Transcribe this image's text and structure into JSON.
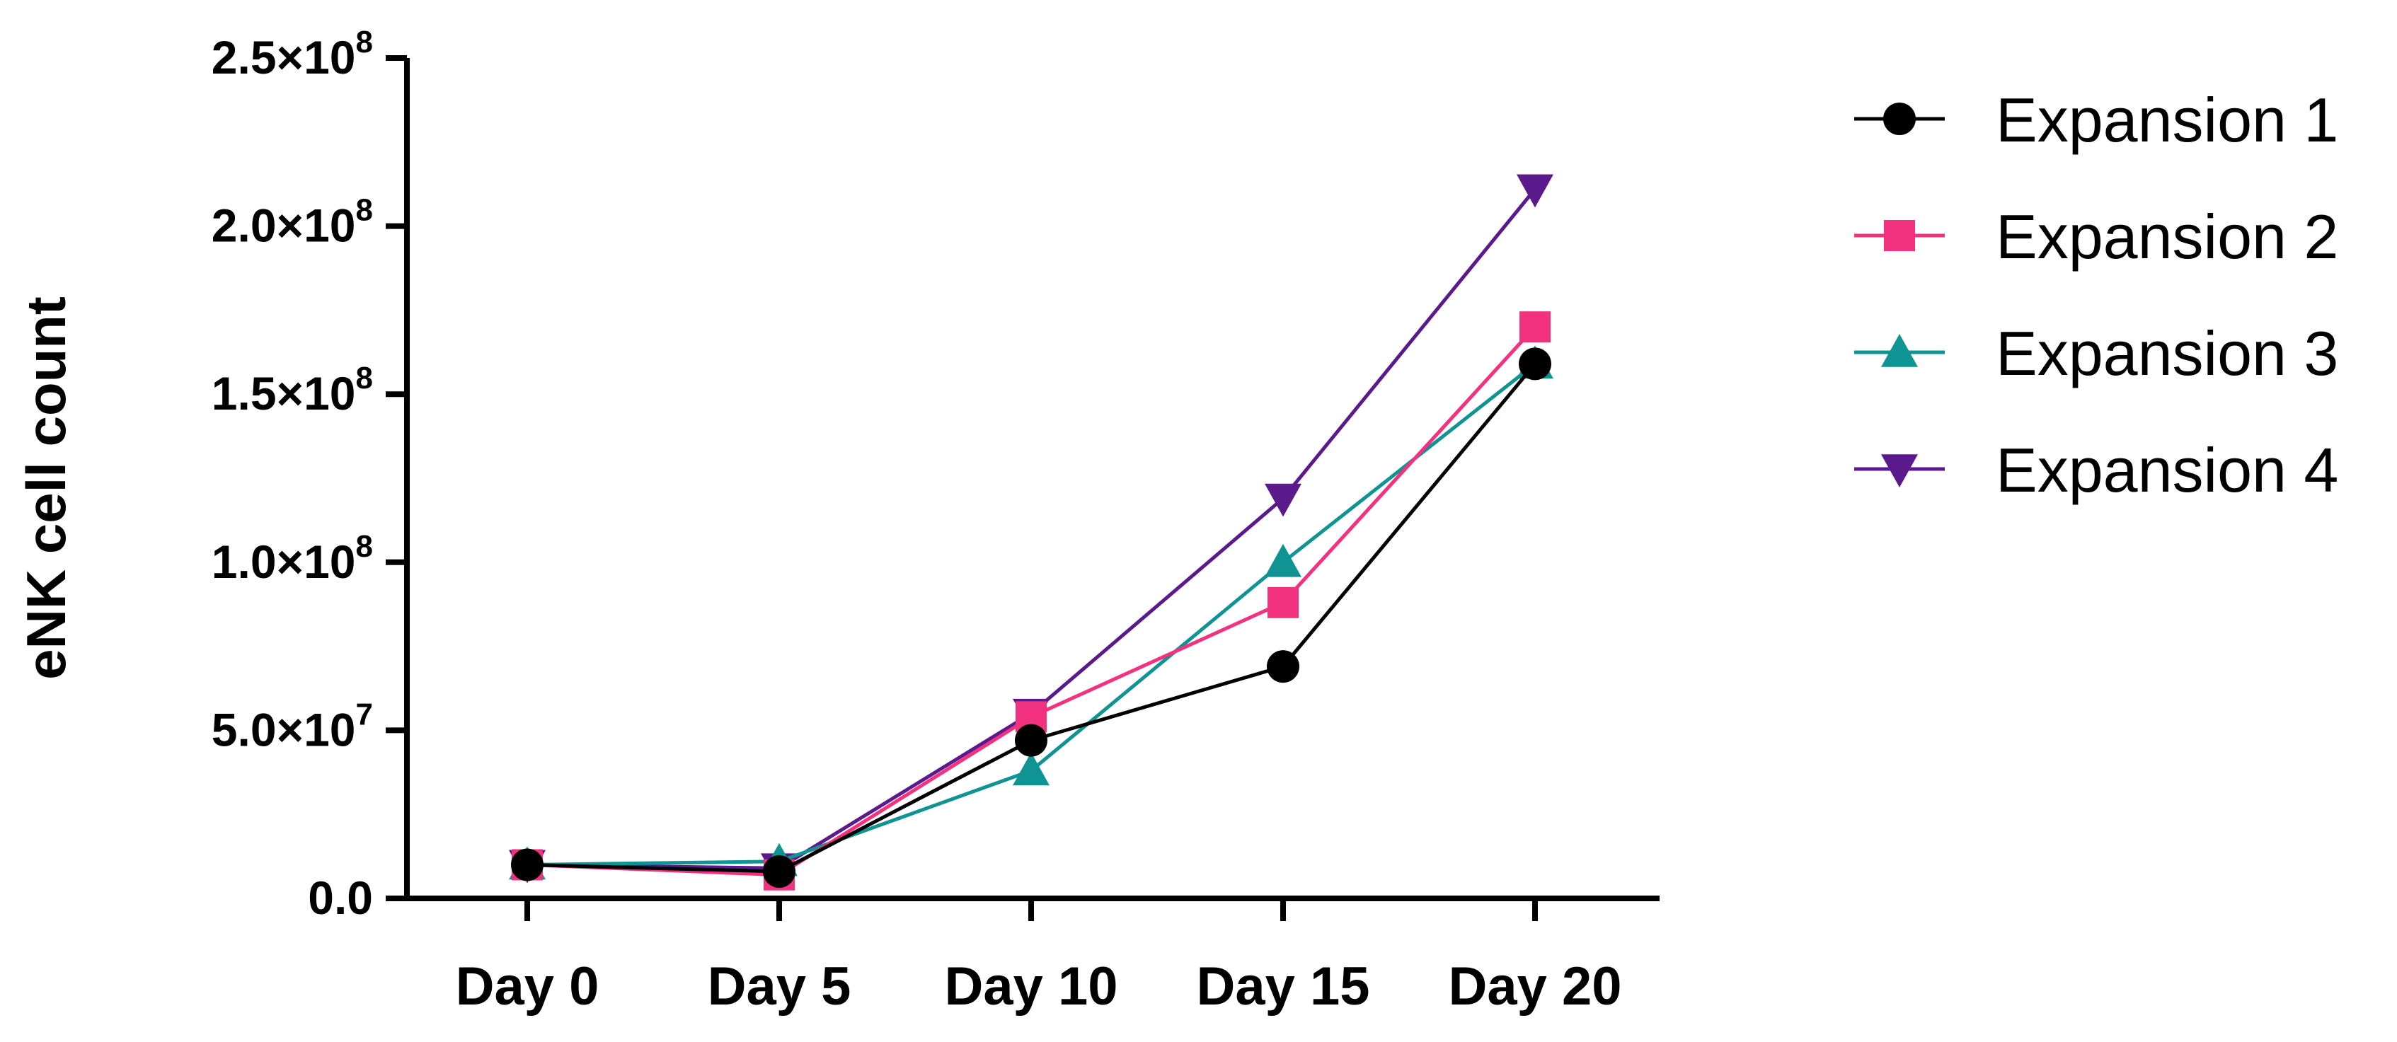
{
  "chart_data": {
    "type": "line",
    "title": "",
    "xlabel": "",
    "ylabel": "eNK cell count",
    "categories": [
      "Day 0",
      "Day 5",
      "Day 10",
      "Day 15",
      "Day 20"
    ],
    "ylim": [
      0,
      250000000
    ],
    "y_ticks": [
      {
        "value": 0,
        "mantissa": "0.0",
        "exponent": ""
      },
      {
        "value": 50000000,
        "mantissa": "5.0×10",
        "exponent": "7"
      },
      {
        "value": 100000000,
        "mantissa": "1.0×10",
        "exponent": "8"
      },
      {
        "value": 150000000,
        "mantissa": "1.5×10",
        "exponent": "8"
      },
      {
        "value": 200000000,
        "mantissa": "2.0×10",
        "exponent": "8"
      },
      {
        "value": 250000000,
        "mantissa": "2.5×10",
        "exponent": "8"
      }
    ],
    "grid": false,
    "legend_position": "top-right",
    "series": [
      {
        "name": "Expansion 1",
        "color": "#000000",
        "marker": "circle",
        "values": [
          10000000,
          8000000,
          47000000,
          69000000,
          159000000
        ]
      },
      {
        "name": "Expansion 2",
        "color": "#f2317f",
        "marker": "square",
        "values": [
          10000000,
          7000000,
          54000000,
          88000000,
          170000000
        ]
      },
      {
        "name": "Expansion 3",
        "color": "#109393",
        "marker": "triangle-up",
        "values": [
          10000000,
          11000000,
          38000000,
          100000000,
          159000000
        ]
      },
      {
        "name": "Expansion 4",
        "color": "#5b1a8c",
        "marker": "triangle-down",
        "values": [
          10000000,
          9000000,
          55000000,
          119000000,
          211000000
        ]
      }
    ]
  }
}
